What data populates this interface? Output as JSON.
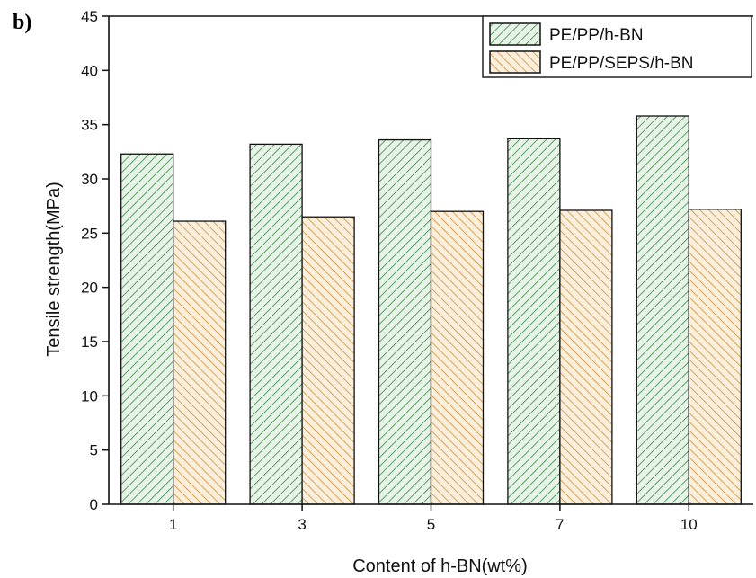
{
  "panel_label": "b)",
  "chart_data": {
    "type": "bar",
    "title": "",
    "xlabel": "Content of h-BN(wt%)",
    "ylabel": "Tensile strength(MPa)",
    "categories": [
      "1",
      "3",
      "5",
      "7",
      "10"
    ],
    "series": [
      {
        "name": "PE/PP/h-BN",
        "values": [
          32.3,
          33.2,
          33.6,
          33.7,
          35.8
        ],
        "color": "#3d8a4a",
        "fill": "#e6f3e6"
      },
      {
        "name": "PE/PP/SEPS/h-BN",
        "values": [
          26.1,
          26.5,
          27.0,
          27.1,
          27.2
        ],
        "color": "#c8913e",
        "fill": "#fbefdc"
      }
    ],
    "ylim": [
      0,
      45
    ],
    "yticks": [
      "0",
      "5",
      "10",
      "15",
      "20",
      "25",
      "30",
      "35",
      "40",
      "45"
    ],
    "grid": false,
    "legend_position": "top-right"
  }
}
